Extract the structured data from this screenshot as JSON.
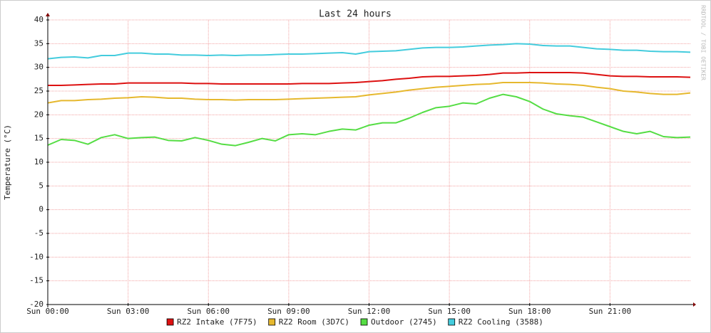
{
  "chart_data": {
    "type": "line",
    "title": "Last 24 hours",
    "y_label": "Temperature (°C)",
    "watermark": "RRDTOOL / TOBI OETIKER",
    "x": [
      0,
      0.5,
      1,
      1.5,
      2,
      2.5,
      3,
      3.5,
      4,
      4.5,
      5,
      5.5,
      6,
      6.5,
      7,
      7.5,
      8,
      8.5,
      9,
      9.5,
      10,
      10.5,
      11,
      11.5,
      12,
      12.5,
      13,
      13.5,
      14,
      14.5,
      15,
      15.5,
      16,
      16.5,
      17,
      17.5,
      18,
      18.5,
      19,
      19.5,
      20,
      20.5,
      21,
      21.5,
      22,
      22.5,
      23,
      23.5,
      24
    ],
    "xlim": [
      0,
      24
    ],
    "xticks": [
      {
        "value": 0,
        "label": "Sun 00:00"
      },
      {
        "value": 3,
        "label": "Sun 03:00"
      },
      {
        "value": 6,
        "label": "Sun 06:00"
      },
      {
        "value": 9,
        "label": "Sun 09:00"
      },
      {
        "value": 12,
        "label": "Sun 12:00"
      },
      {
        "value": 15,
        "label": "Sun 15:00"
      },
      {
        "value": 18,
        "label": "Sun 18:00"
      },
      {
        "value": 21,
        "label": "Sun 21:00"
      }
    ],
    "ylim": [
      -20,
      40
    ],
    "yticks": [
      -20,
      -15,
      -10,
      -5,
      0,
      5,
      10,
      15,
      20,
      25,
      30,
      35,
      40
    ],
    "grid": true,
    "series": [
      {
        "name": "RZ2 Intake (7F75)",
        "color": "#dd1111",
        "values": [
          26.2,
          26.2,
          26.3,
          26.4,
          26.5,
          26.5,
          26.7,
          26.7,
          26.7,
          26.7,
          26.7,
          26.6,
          26.6,
          26.5,
          26.5,
          26.5,
          26.5,
          26.5,
          26.5,
          26.6,
          26.6,
          26.6,
          26.7,
          26.8,
          27.0,
          27.2,
          27.5,
          27.7,
          28.0,
          28.1,
          28.1,
          28.2,
          28.3,
          28.5,
          28.8,
          28.8,
          28.9,
          28.9,
          28.9,
          28.9,
          28.8,
          28.5,
          28.2,
          28.1,
          28.1,
          28.0,
          28.0,
          28.0,
          27.9
        ]
      },
      {
        "name": "RZ2 Room (3D7C)",
        "color": "#e6b82e",
        "values": [
          22.5,
          23.0,
          23.0,
          23.2,
          23.3,
          23.5,
          23.6,
          23.8,
          23.7,
          23.5,
          23.5,
          23.3,
          23.2,
          23.2,
          23.1,
          23.2,
          23.2,
          23.2,
          23.3,
          23.4,
          23.5,
          23.6,
          23.7,
          23.8,
          24.2,
          24.5,
          24.8,
          25.2,
          25.5,
          25.8,
          26.0,
          26.2,
          26.4,
          26.5,
          26.8,
          26.8,
          26.8,
          26.7,
          26.5,
          26.4,
          26.2,
          25.8,
          25.5,
          25.0,
          24.8,
          24.5,
          24.3,
          24.3,
          24.6
        ]
      },
      {
        "name": "Outdoor (2745)",
        "color": "#55dd44",
        "values": [
          13.6,
          14.8,
          14.6,
          13.8,
          15.2,
          15.8,
          15.0,
          15.2,
          15.3,
          14.6,
          14.5,
          15.2,
          14.6,
          13.8,
          13.5,
          14.2,
          15.0,
          14.5,
          15.8,
          16.0,
          15.8,
          16.5,
          17.0,
          16.8,
          17.8,
          18.3,
          18.3,
          19.3,
          20.5,
          21.5,
          21.8,
          22.5,
          22.3,
          23.5,
          24.3,
          23.8,
          22.8,
          21.2,
          20.2,
          19.8,
          19.5,
          18.5,
          17.5,
          16.5,
          16.0,
          16.5,
          15.4,
          15.2,
          15.3
        ]
      },
      {
        "name": "RZ2 Cooling (3588)",
        "color": "#44ccdd",
        "values": [
          31.8,
          32.1,
          32.2,
          32.0,
          32.5,
          32.5,
          33.0,
          33.0,
          32.8,
          32.8,
          32.6,
          32.6,
          32.5,
          32.6,
          32.5,
          32.6,
          32.6,
          32.7,
          32.8,
          32.8,
          32.9,
          33.0,
          33.1,
          32.8,
          33.3,
          33.4,
          33.5,
          33.8,
          34.1,
          34.2,
          34.2,
          34.3,
          34.5,
          34.7,
          34.8,
          35.0,
          34.9,
          34.6,
          34.5,
          34.5,
          34.2,
          33.9,
          33.8,
          33.6,
          33.6,
          33.4,
          33.3,
          33.3,
          33.2
        ]
      }
    ]
  }
}
